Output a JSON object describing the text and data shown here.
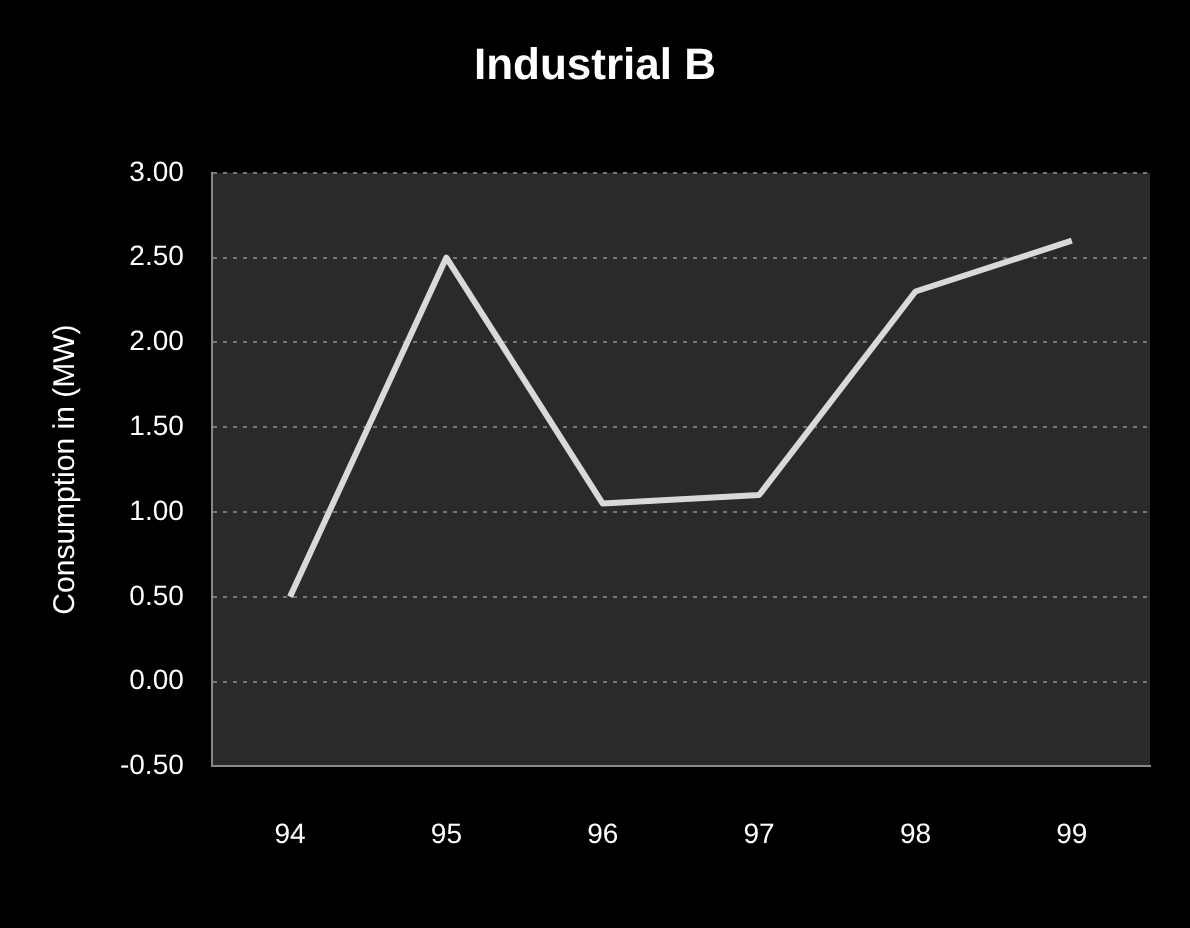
{
  "chart_data": {
    "type": "line",
    "title": "Industrial B",
    "ylabel": "Consumption in (MW)",
    "categories": [
      "94",
      "95",
      "96",
      "97",
      "98",
      "99"
    ],
    "series": [
      {
        "color": "#d9d9d9",
        "values": [
          0.5,
          2.5,
          1.05,
          1.1,
          2.3,
          2.6
        ]
      }
    ],
    "ylim": [
      -0.5,
      3.0
    ],
    "yticks": [
      {
        "value": -0.5,
        "label": "-0.50"
      },
      {
        "value": 0,
        "label": "0.00"
      },
      {
        "value": 0.5,
        "label": "0.50"
      },
      {
        "value": 1,
        "label": "1.00"
      },
      {
        "value": 1.5,
        "label": "1.50"
      },
      {
        "value": 2,
        "label": "2.00"
      },
      {
        "value": 2.5,
        "label": "2.50"
      },
      {
        "value": 3,
        "label": "3.00"
      }
    ],
    "grid": "y",
    "legend": false,
    "marker": "none"
  }
}
